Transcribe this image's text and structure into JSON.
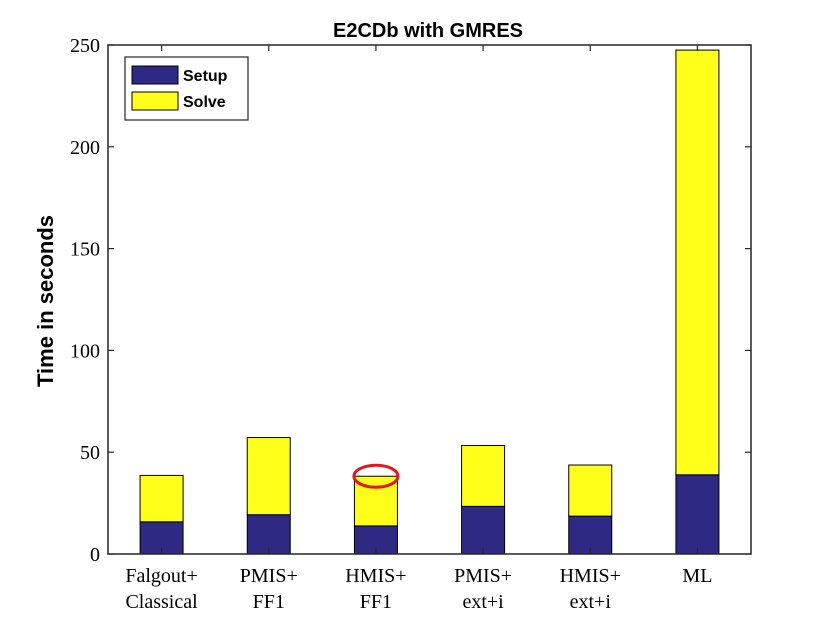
{
  "colors": {
    "setup": "#2e2a84",
    "solve": "#ffff1a",
    "highlight": "#e8141c"
  },
  "chart_data": {
    "type": "bar",
    "stacked": true,
    "title": "E2CDb with GMRES",
    "xlabel": "",
    "ylabel": "Time in seconds",
    "ylim": [
      0,
      250
    ],
    "yticks": [
      0,
      50,
      100,
      150,
      200,
      250
    ],
    "categories": [
      [
        "Falgout+",
        "Classical"
      ],
      [
        "PMIS+",
        "FF1"
      ],
      [
        "HMIS+",
        "FF1"
      ],
      [
        "PMIS+",
        "ext+i"
      ],
      [
        "HMIS+",
        "ext+i"
      ],
      [
        "ML"
      ]
    ],
    "series": [
      {
        "name": "Setup",
        "values": [
          15.8,
          19.3,
          13.8,
          23.4,
          18.6,
          38.9
        ]
      },
      {
        "name": "Solve",
        "values": [
          22.8,
          37.9,
          24.4,
          29.9,
          25.1,
          208.6
        ]
      }
    ],
    "legend": {
      "position": "top-left",
      "entries": [
        "Setup",
        "Solve"
      ]
    },
    "grid": false,
    "annotation": {
      "type": "ellipse",
      "category_index": 2,
      "y": 38.2
    }
  }
}
